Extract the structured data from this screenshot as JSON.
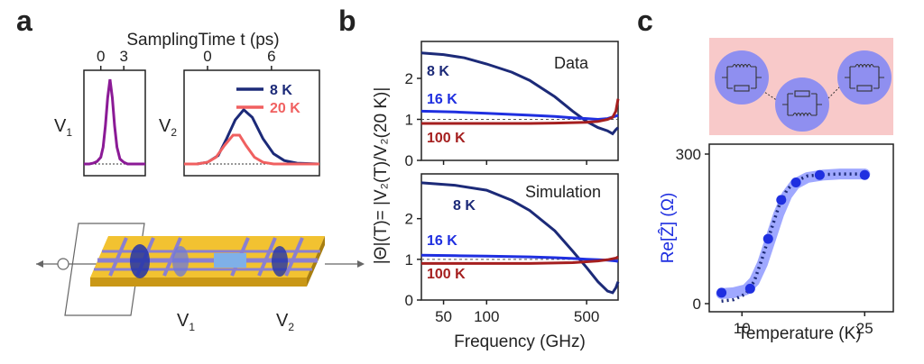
{
  "panels": {
    "a": {
      "letter": "a",
      "axis_title": "SamplingTime t (ps)",
      "v1_label": "V",
      "v1_sub": "1",
      "v2_label": "V",
      "v2_sub": "2",
      "device_v1": "V",
      "device_v1_sub": "1",
      "device_v2": "V",
      "device_v2_sub": "2"
    },
    "b": {
      "letter": "b",
      "ylabel": "|Θ|(T)= |V₂(T)/V₂(20 K)|",
      "xlabel": "Frequency (GHz)"
    },
    "c": {
      "letter": "c",
      "ylabel": "Re[Ẑ] (Ω)",
      "xlabel": "Temperature (K)"
    }
  },
  "colors": {
    "dark_blue": "#1c2a78",
    "blue": "#1f2fe0",
    "dark_red": "#a51f1f",
    "red": "#f06060",
    "purple": "#8b1a96",
    "light_blue": "#7f8bff",
    "pink_bg": "#f8c9c9",
    "gold": "#f2c231"
  },
  "chart_data": [
    {
      "id": "a-V1",
      "type": "line",
      "x_ticks": [
        0,
        3
      ],
      "xlim": [
        -2.2,
        5.8
      ],
      "ylim": [
        0,
        1
      ],
      "series": [
        {
          "x": [
            -2.2,
            -1.5,
            -1.0,
            -0.5,
            0,
            0.3,
            0.6,
            0.9,
            1.2,
            1.5,
            1.8,
            2.1,
            2.5,
            3.0,
            3.5,
            4.0,
            5.0,
            5.8
          ],
          "y": [
            0,
            0,
            0.01,
            0.03,
            0.08,
            0.2,
            0.45,
            0.78,
            1.0,
            0.78,
            0.45,
            0.2,
            0.06,
            0.02,
            0,
            0,
            0,
            0
          ]
        }
      ]
    },
    {
      "id": "a-V2",
      "type": "line",
      "x_ticks": [
        0,
        6
      ],
      "xlim": [
        -2.2,
        10.5
      ],
      "ylim": [
        0,
        1
      ],
      "legend": [
        "8 K",
        "20 K"
      ],
      "series": [
        {
          "name": "8 K",
          "x": [
            -2.2,
            -1,
            0,
            1,
            1.8,
            2.6,
            3.4,
            4.2,
            5.2,
            6.2,
            7.2,
            8.4,
            10.5
          ],
          "y": [
            0,
            0,
            0.02,
            0.1,
            0.3,
            0.52,
            0.64,
            0.55,
            0.3,
            0.12,
            0.04,
            0.01,
            0
          ]
        },
        {
          "name": "20 K",
          "x": [
            -2.2,
            -1,
            0,
            0.8,
            1.6,
            2.4,
            3.0,
            3.6,
            4.4,
            5.2,
            6.2,
            8.0,
            10.5
          ],
          "y": [
            0,
            0,
            0.02,
            0.08,
            0.22,
            0.34,
            0.34,
            0.22,
            0.08,
            0.02,
            0,
            0,
            0
          ]
        }
      ]
    },
    {
      "id": "b-data",
      "type": "line",
      "title": "Data",
      "xscale": "log",
      "x_ticks": [
        50,
        100,
        500
      ],
      "y_ticks": [
        0,
        1,
        2
      ],
      "xlim": [
        35,
        830
      ],
      "ylim": [
        0,
        2.9
      ],
      "series": [
        {
          "name": "8 K",
          "x": [
            35,
            50,
            70,
            100,
            150,
            200,
            300,
            400,
            500,
            600,
            700,
            760,
            800,
            830
          ],
          "y": [
            2.62,
            2.58,
            2.5,
            2.35,
            2.15,
            1.95,
            1.55,
            1.2,
            0.95,
            0.8,
            0.72,
            0.65,
            0.75,
            0.8
          ]
        },
        {
          "name": "16 K",
          "x": [
            35,
            60,
            100,
            200,
            300,
            400,
            500,
            600,
            700,
            800,
            830
          ],
          "y": [
            1.2,
            1.18,
            1.15,
            1.1,
            1.07,
            1.04,
            1.02,
            1.0,
            1.02,
            1.08,
            1.1
          ]
        },
        {
          "name": "100 K",
          "x": [
            35,
            60,
            100,
            200,
            300,
            400,
            500,
            600,
            700,
            760,
            800,
            830
          ],
          "y": [
            0.9,
            0.9,
            0.9,
            0.9,
            0.91,
            0.92,
            0.93,
            0.95,
            1.0,
            1.05,
            1.2,
            1.5
          ]
        }
      ],
      "reference_line": 1
    },
    {
      "id": "b-simulation",
      "type": "line",
      "title": "Simulation",
      "xscale": "log",
      "x_ticks": [
        50,
        100,
        500
      ],
      "y_ticks": [
        0,
        1,
        2
      ],
      "xlim": [
        35,
        830
      ],
      "ylim": [
        0,
        3.1
      ],
      "series": [
        {
          "name": "8 K",
          "x": [
            35,
            60,
            100,
            150,
            200,
            300,
            400,
            500,
            600,
            700,
            760,
            800,
            830
          ],
          "y": [
            2.88,
            2.82,
            2.7,
            2.45,
            2.2,
            1.7,
            1.2,
            0.8,
            0.45,
            0.22,
            0.18,
            0.3,
            0.45
          ]
        },
        {
          "name": "16 K",
          "x": [
            35,
            60,
            100,
            200,
            300,
            400,
            500,
            600,
            700,
            800,
            830
          ],
          "y": [
            1.1,
            1.09,
            1.08,
            1.06,
            1.04,
            1.02,
            1.0,
            0.99,
            0.98,
            0.96,
            0.95
          ]
        },
        {
          "name": "100 K",
          "x": [
            35,
            60,
            100,
            200,
            300,
            400,
            500,
            600,
            700,
            800,
            830
          ],
          "y": [
            0.9,
            0.9,
            0.9,
            0.9,
            0.91,
            0.92,
            0.94,
            0.96,
            0.99,
            1.03,
            1.06
          ]
        }
      ],
      "reference_line": 1
    },
    {
      "id": "c-impedance",
      "type": "scatter",
      "x_ticks": [
        10,
        25
      ],
      "y_ticks": [
        0,
        300
      ],
      "xlim": [
        6,
        28.5
      ],
      "ylim": [
        0,
        300
      ],
      "series": [
        {
          "name": "points",
          "x": [
            7.5,
            11,
            13.2,
            14.8,
            16.6,
            19.5,
            25
          ],
          "y": [
            22,
            30,
            130,
            208,
            243,
            258,
            258
          ]
        },
        {
          "name": "dotted",
          "x": [
            7.5,
            9,
            10.5,
            11.5,
            12.5,
            13.5,
            14.5,
            15.5,
            16.5,
            18,
            20,
            22,
            25.8
          ],
          "y": [
            5,
            8,
            20,
            45,
            92,
            145,
            195,
            228,
            245,
            256,
            259,
            260,
            260
          ]
        },
        {
          "name": "band",
          "x": [
            7.5,
            9,
            10.5,
            11.5,
            12.5,
            13.5,
            14.5,
            15.5,
            16.5,
            18,
            20,
            22,
            25
          ],
          "y": [
            20,
            22,
            28,
            45,
            80,
            130,
            180,
            218,
            240,
            253,
            258,
            260,
            260
          ]
        }
      ]
    }
  ]
}
